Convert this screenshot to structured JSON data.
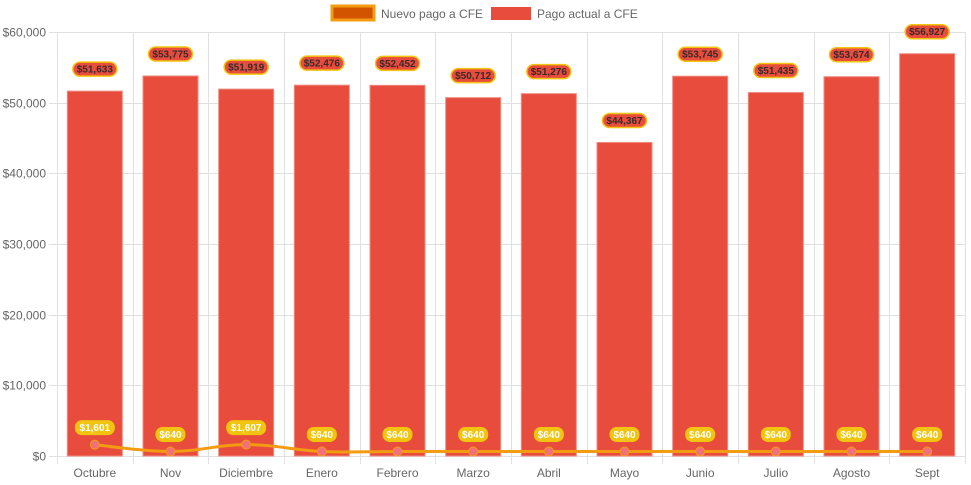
{
  "chart_data": {
    "type": "bar",
    "title": "",
    "xlabel": "",
    "ylabel": "",
    "ylim": [
      0,
      60000
    ],
    "yticks": [
      "$0",
      "$10,000",
      "$20,000",
      "$30,000",
      "$40,000",
      "$50,000",
      "$60,000"
    ],
    "ytick_values": [
      0,
      10000,
      20000,
      30000,
      40000,
      50000,
      60000
    ],
    "grid": true,
    "legend_position": "top-center",
    "categories": [
      "Octubre",
      "Nov",
      "Diciembre",
      "Enero",
      "Febrero",
      "Marzo",
      "Abril",
      "Mayo",
      "Junio",
      "Julio",
      "Agosto",
      "Sept"
    ],
    "series": [
      {
        "name": "Nuevo pago a CFE",
        "type": "line",
        "color": "#f39c12",
        "point_color": "#f1707a",
        "label_bg": "#f1c40f",
        "values": [
          1601,
          640,
          1607,
          640,
          640,
          640,
          640,
          640,
          640,
          640,
          640,
          640
        ],
        "labels": [
          "$1,601",
          "$640",
          "$1,607",
          "$640",
          "$640",
          "$640",
          "$640",
          "$640",
          "$640",
          "$640",
          "$640",
          "$640"
        ]
      },
      {
        "name": "Pago actual a CFE",
        "type": "bar",
        "color": "#e74c3c",
        "label_border": "#f1c40f",
        "values": [
          51633,
          53775,
          51919,
          52476,
          52452,
          50712,
          51276,
          44367,
          53745,
          51435,
          53674,
          56927
        ],
        "labels": [
          "$51,633",
          "$53,775",
          "$51,919",
          "$52,476",
          "$52,452",
          "$50,712",
          "$51,276",
          "$44,367",
          "$53,745",
          "$51,435",
          "$53,674",
          "$56,927"
        ]
      }
    ],
    "legend": [
      {
        "label": "Nuevo pago a CFE",
        "fill": "#d35400",
        "border": "#f39c12"
      },
      {
        "label": "Pago actual a CFE",
        "fill": "#e74c3c",
        "border": "#e74c3c"
      }
    ]
  }
}
